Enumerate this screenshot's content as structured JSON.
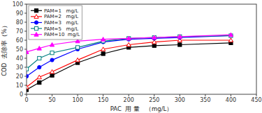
{
  "chart_data": {
    "type": "line",
    "x": [
      0,
      25,
      50,
      100,
      150,
      200,
      250,
      300,
      400
    ],
    "series": [
      {
        "name": "PAM=1   mg/L",
        "color": "black",
        "marker": "square",
        "values": [
          5,
          13,
          21,
          35,
          45,
          52,
          54,
          55,
          57
        ]
      },
      {
        "name": "PAM=2   mg/L",
        "color": "red",
        "marker": "triangle-open",
        "values": [
          8,
          19,
          25,
          38,
          50,
          55,
          58,
          60,
          60
        ]
      },
      {
        "name": "PAM=3   mg/L",
        "color": "blue",
        "marker": "circle",
        "values": [
          20,
          30,
          38,
          50,
          58,
          61,
          62,
          63,
          65
        ]
      },
      {
        "name": "PAM=5   mg/L",
        "color": "#008080",
        "marker": "square-open",
        "values": [
          28,
          40,
          46,
          52,
          59,
          62,
          63,
          64,
          65
        ]
      },
      {
        "name": "PAM=10  mg/L",
        "color": "magenta",
        "marker": "triangle",
        "values": [
          47,
          51,
          55,
          59,
          61,
          62,
          63,
          64,
          66
        ]
      }
    ],
    "x_label": "PAC  用 量   （mg/L）",
    "y_label": "COD  去除率（%）",
    "xlim": [
      0,
      450
    ],
    "ylim": [
      0,
      100
    ],
    "xticks": [
      0,
      50,
      100,
      150,
      200,
      250,
      300,
      350,
      400,
      450
    ],
    "yticks": [
      0,
      10,
      20,
      30,
      40,
      50,
      60,
      70,
      80,
      90,
      100
    ],
    "grid": false,
    "legend": "upper left"
  }
}
